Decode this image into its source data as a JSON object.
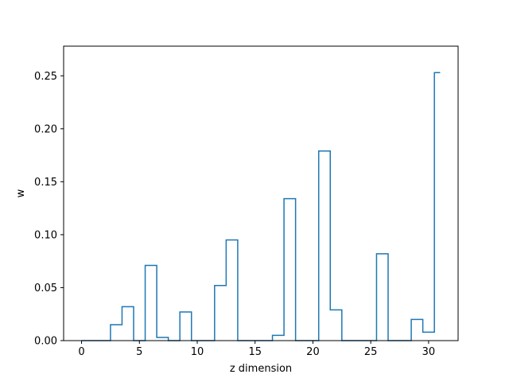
{
  "chart_data": {
    "type": "step",
    "title": "",
    "xlabel": "z dimension",
    "ylabel": "w",
    "xlim": [
      -1.55,
      32.55
    ],
    "ylim": [
      0,
      0.278
    ],
    "xticks": [
      0,
      5,
      10,
      15,
      20,
      25,
      30
    ],
    "xtick_labels": [
      "0",
      "5",
      "10",
      "15",
      "20",
      "25",
      "30"
    ],
    "yticks": [
      0.0,
      0.05,
      0.1,
      0.15,
      0.2,
      0.25
    ],
    "ytick_labels": [
      "0.00",
      "0.05",
      "0.10",
      "0.15",
      "0.20",
      "0.25"
    ],
    "grid": false,
    "series": [
      {
        "step_where": "mid",
        "color": "#1f77b4",
        "x": [
          0,
          1,
          2,
          3,
          4,
          5,
          6,
          7,
          8,
          9,
          10,
          11,
          12,
          13,
          14,
          15,
          16,
          17,
          18,
          19,
          20,
          21,
          22,
          23,
          24,
          25,
          26,
          27,
          28,
          29,
          30,
          31
        ],
        "y": [
          0,
          0,
          0,
          0.015,
          0.032,
          0,
          0.071,
          0.003,
          0,
          0.027,
          0,
          0,
          0.052,
          0.095,
          0,
          0,
          0,
          0.005,
          0.134,
          0,
          0,
          0.179,
          0.029,
          0,
          0,
          0,
          0.082,
          0,
          0,
          0.02,
          0.008,
          0.253
        ]
      }
    ]
  }
}
